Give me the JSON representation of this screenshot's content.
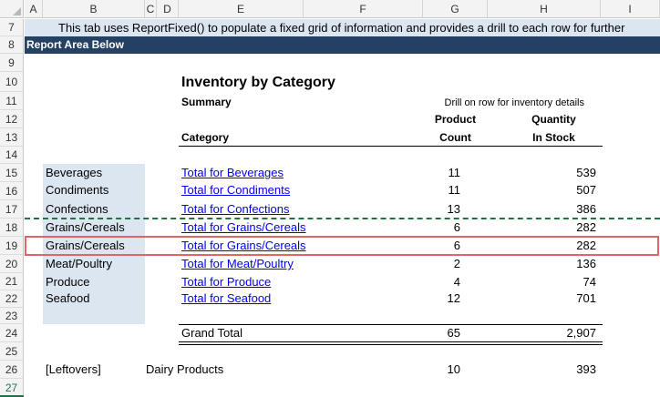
{
  "columns": [
    "A",
    "B",
    "C",
    "D",
    "E",
    "F",
    "G",
    "H",
    "I"
  ],
  "rows": [
    "7",
    "8",
    "9",
    "10",
    "11",
    "12",
    "13",
    "14",
    "15",
    "16",
    "17",
    "18",
    "19",
    "20",
    "21",
    "22",
    "23",
    "24",
    "25",
    "26",
    "27"
  ],
  "info_text": "This tab uses ReportFixed() to populate a fixed grid of information and provides a drill to each row for further",
  "banner_text": "Report Area Below",
  "report": {
    "title": "Inventory by Category",
    "summary_label": "Summary",
    "drill_note": "Drill on row for inventory details",
    "header_product": "Product",
    "header_count": "Count",
    "header_quantity": "Quantity",
    "header_in_stock": "In Stock",
    "header_category": "Category"
  },
  "categories": [
    {
      "name": "Beverages",
      "link": "Total for Beverages",
      "count": "11",
      "stock": "539"
    },
    {
      "name": "Condiments",
      "link": "Total for Condiments",
      "count": "11",
      "stock": "507"
    },
    {
      "name": "Confections",
      "link": "Total for Confections",
      "count": "13",
      "stock": "386"
    },
    {
      "name": "Grains/Cereals",
      "link": "Total for Grains/Cereals",
      "count": "6",
      "stock": "282"
    },
    {
      "name": "Grains/Cereals",
      "link": "Total for Grains/Cereals",
      "count": "6",
      "stock": "282"
    },
    {
      "name": "Meat/Poultry",
      "link": "Total for Meat/Poultry",
      "count": "2",
      "stock": "136"
    },
    {
      "name": "Produce",
      "link": "Total for Produce",
      "count": "4",
      "stock": "74"
    },
    {
      "name": "Seafood",
      "link": "Total for Seafood",
      "count": "12",
      "stock": "701"
    }
  ],
  "grand_total": {
    "label": "Grand Total",
    "count": "65",
    "stock": "2,907"
  },
  "leftovers": {
    "label": "[Leftovers]",
    "name": "Dairy Products",
    "count": "10",
    "stock": "393"
  },
  "colors": {
    "banner": "#244062",
    "highlight": "#dce6f1",
    "dashed": "#217346",
    "selection": "#e06666",
    "link": "#0000ee"
  }
}
